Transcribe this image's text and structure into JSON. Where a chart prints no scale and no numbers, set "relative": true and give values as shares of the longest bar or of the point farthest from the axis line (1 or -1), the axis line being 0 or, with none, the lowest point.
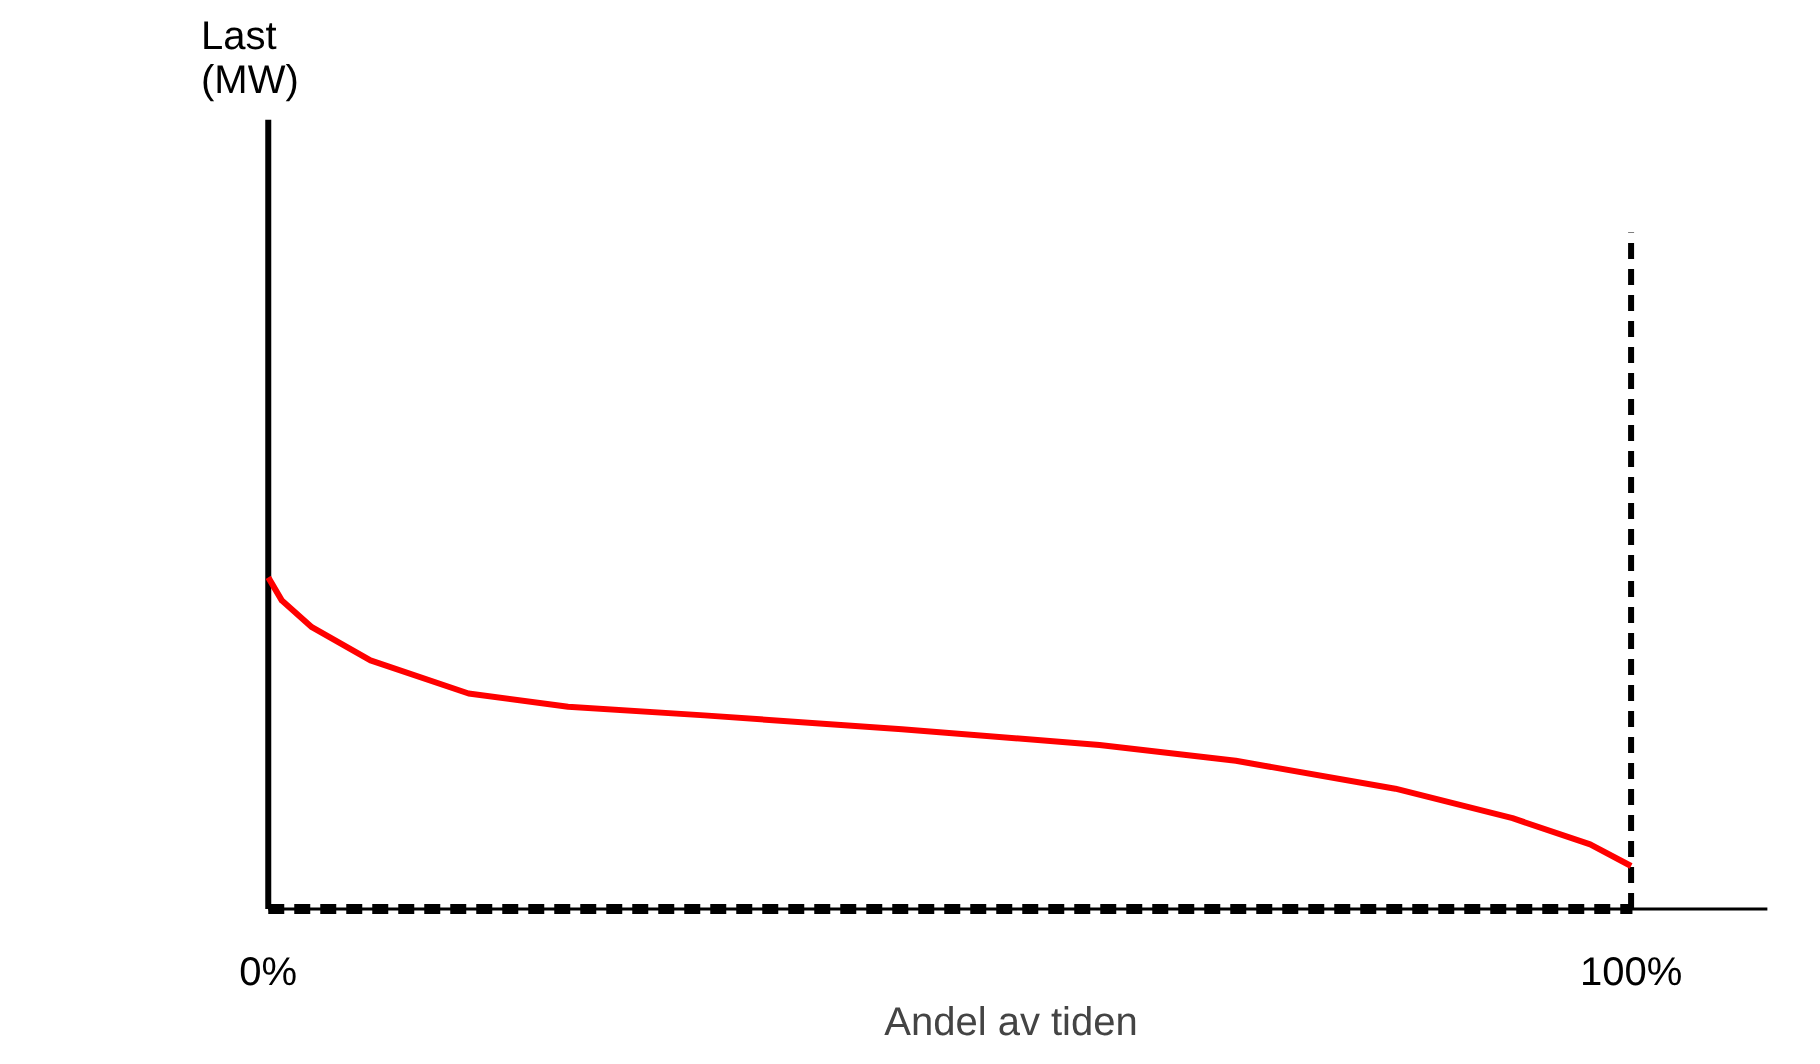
{
  "chart_data": {
    "type": "line",
    "relative": true,
    "xlabel": "Andel av tiden",
    "annotations": [
      "Last\n(MW)"
    ],
    "xlim": [
      0,
      110
    ],
    "xticks": [
      {
        "value": 0,
        "label": "0%"
      },
      {
        "value": 100,
        "label": "100%"
      }
    ],
    "tick_labels": "x",
    "grid": false,
    "series": [
      {
        "color": "#ff0000",
        "x": [
          0,
          1,
          3.2,
          7.5,
          14.7,
          22,
          32,
          46.5,
          61,
          71,
          82.7,
          91.3,
          97,
          100
        ],
        "values": [
          1,
          0.93,
          0.85,
          0.75,
          0.65,
          0.61,
          0.584,
          0.542,
          0.495,
          0.447,
          0.363,
          0.274,
          0.195,
          0.13
        ]
      }
    ],
    "ref_lines": [
      {
        "axis": "x",
        "value": 100,
        "line_style": "dashed",
        "color": "#000000"
      },
      {
        "axis": "y",
        "value": 0,
        "line_style": "dashed",
        "color": "#000000"
      }
    ]
  }
}
